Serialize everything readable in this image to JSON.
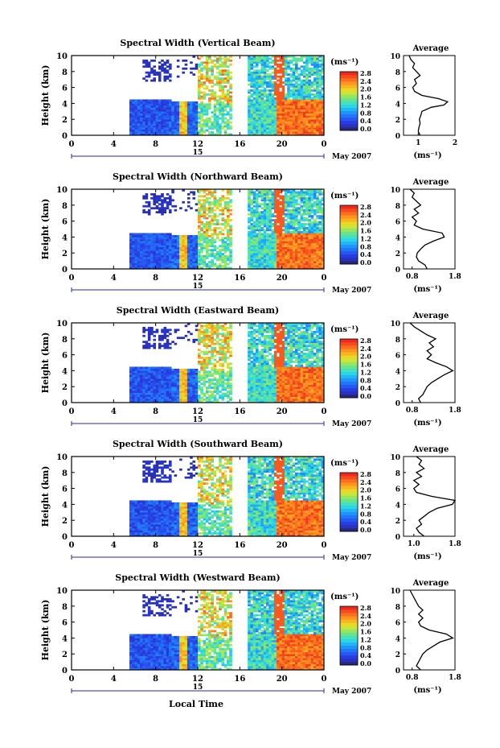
{
  "chart_data": [
    {
      "type": "heatmap",
      "title": "Spectral Width (Vertical Beam)",
      "ylabel": "Height (km)",
      "ylim": [
        0,
        10
      ],
      "y_ticks": [
        "0",
        "2",
        "4",
        "6",
        "8",
        "10"
      ],
      "x_ticks": [
        "0",
        "4",
        "8",
        "12",
        "16",
        "20",
        "0"
      ],
      "xlim": [
        0,
        24
      ],
      "date_label": "15",
      "month_label": "May 2007",
      "colorbar": {
        "unit": "(ms⁻¹)",
        "ticks": [
          "0.0",
          "0.4",
          "0.8",
          "1.2",
          "1.6",
          "2.0",
          "2.4",
          "2.8"
        ]
      },
      "average": {
        "title": "Average",
        "xlabel": "(ms⁻¹)",
        "x_ticks": [
          "1",
          "2"
        ],
        "xlim": [
          0.6,
          2.0
        ],
        "profile_height": [
          0,
          0.5,
          1,
          1.5,
          2,
          2.5,
          3,
          3.5,
          3.8,
          4.2,
          4.6,
          5,
          5.5,
          6,
          6.5,
          7,
          7.5,
          8,
          8.5,
          9,
          9.5,
          10
        ],
        "profile_value": [
          1.05,
          1.0,
          1.02,
          1.05,
          1.03,
          1.07,
          1.1,
          1.35,
          1.7,
          1.8,
          1.55,
          1.1,
          0.9,
          0.85,
          0.95,
          0.9,
          1.05,
          0.95,
          0.85,
          0.9,
          0.8,
          0.75
        ]
      }
    },
    {
      "type": "heatmap",
      "title": "Spectral Width (Northward Beam)",
      "ylabel": "Height (km)",
      "ylim": [
        0,
        10
      ],
      "y_ticks": [
        "0",
        "2",
        "4",
        "6",
        "8",
        "10"
      ],
      "x_ticks": [
        "0",
        "4",
        "8",
        "12",
        "16",
        "20",
        "0"
      ],
      "xlim": [
        0,
        24
      ],
      "date_label": "15",
      "month_label": "May 2007",
      "colorbar": {
        "unit": "(ms⁻¹)",
        "ticks": [
          "0.0",
          "0.4",
          "0.8",
          "1.2",
          "1.6",
          "2.0",
          "2.4",
          "2.8"
        ]
      },
      "average": {
        "title": "Average",
        "xlabel": "(ms⁻¹)",
        "x_ticks": [
          "0.8",
          "1.8"
        ],
        "xlim": [
          0.6,
          1.8
        ],
        "profile_height": [
          0,
          0.5,
          1,
          1.5,
          2,
          2.5,
          3,
          3.5,
          4,
          4.5,
          5,
          5.5,
          6,
          6.5,
          7,
          7.5,
          8,
          8.5,
          9,
          9.5,
          10
        ],
        "profile_value": [
          1.15,
          1.1,
          0.95,
          0.9,
          0.92,
          1.0,
          1.1,
          1.3,
          1.55,
          1.5,
          1.05,
          0.85,
          0.9,
          0.8,
          0.95,
          0.85,
          1.0,
          0.9,
          0.8,
          0.85,
          0.75
        ]
      }
    },
    {
      "type": "heatmap",
      "title": "Spectral Width (Eastward Beam)",
      "ylabel": "Height (km)",
      "ylim": [
        0,
        10
      ],
      "y_ticks": [
        "0",
        "2",
        "4",
        "6",
        "8",
        "10"
      ],
      "x_ticks": [
        "0",
        "4",
        "8",
        "12",
        "16",
        "20",
        "0"
      ],
      "xlim": [
        0,
        24
      ],
      "date_label": "15",
      "month_label": "May 2007",
      "colorbar": {
        "unit": "(ms⁻¹)",
        "ticks": [
          "0.0",
          "0.4",
          "0.8",
          "1.2",
          "1.6",
          "2.0",
          "2.4",
          "2.8"
        ]
      },
      "average": {
        "title": "Average",
        "xlabel": "(ms⁻¹)",
        "x_ticks": [
          "0.8",
          "1.8"
        ],
        "xlim": [
          0.6,
          1.8
        ],
        "profile_height": [
          0,
          0.5,
          1,
          1.5,
          2,
          2.5,
          3,
          3.5,
          4,
          4.5,
          5,
          5.5,
          6,
          6.5,
          7,
          7.5,
          8,
          8.5,
          9,
          9.5,
          10
        ],
        "profile_value": [
          1.0,
          0.95,
          1.05,
          1.1,
          1.15,
          1.25,
          1.4,
          1.55,
          1.75,
          1.6,
          1.35,
          1.15,
          1.25,
          1.15,
          1.3,
          1.2,
          1.35,
          1.15,
          1.0,
          0.85,
          0.75
        ]
      }
    },
    {
      "type": "heatmap",
      "title": "Spectral Width (Southward Beam)",
      "ylabel": "Height (km)",
      "ylim": [
        0,
        10
      ],
      "y_ticks": [
        "0",
        "2",
        "4",
        "6",
        "8",
        "10"
      ],
      "x_ticks": [
        "0",
        "4",
        "8",
        "12",
        "16",
        "20",
        "0"
      ],
      "xlim": [
        0,
        24
      ],
      "date_label": "15",
      "month_label": "May 2007",
      "colorbar": {
        "unit": "(ms⁻¹)",
        "ticks": [
          "0.0",
          "0.4",
          "0.8",
          "1.2",
          "1.6",
          "2.0",
          "2.4",
          "2.8"
        ]
      },
      "average": {
        "title": "Average",
        "xlabel": "(ms⁻¹)",
        "x_ticks": [
          "1.0",
          "1.8"
        ],
        "xlim": [
          0.8,
          1.8
        ],
        "profile_height": [
          0,
          0.5,
          1,
          1.5,
          2,
          2.5,
          3,
          3.5,
          4,
          4.5,
          5,
          5.5,
          6,
          6.5,
          7,
          7.5,
          8,
          8.5,
          9,
          9.5,
          10
        ],
        "profile_value": [
          1.2,
          1.1,
          1.05,
          1.15,
          1.1,
          1.2,
          1.3,
          1.45,
          1.75,
          1.8,
          1.35,
          1.05,
          1.0,
          1.1,
          1.0,
          1.15,
          1.05,
          1.2,
          1.1,
          1.15,
          1.05
        ]
      }
    },
    {
      "type": "heatmap",
      "title": "Spectral Width (Westward Beam)",
      "ylabel": "Height (km)",
      "ylim": [
        0,
        10
      ],
      "y_ticks": [
        "0",
        "2",
        "4",
        "6",
        "8",
        "10"
      ],
      "x_ticks": [
        "0",
        "4",
        "8",
        "12",
        "16",
        "20",
        "0"
      ],
      "xlim": [
        0,
        24
      ],
      "date_label": "15",
      "month_label": "May 2007",
      "xlabel": "Local Time",
      "colorbar": {
        "unit": "(ms⁻¹)",
        "ticks": [
          "0.0",
          "0.4",
          "0.8",
          "1.2",
          "1.6",
          "2.0",
          "2.4",
          "2.8"
        ]
      },
      "average": {
        "title": "Average",
        "xlabel": "(ms⁻¹)",
        "x_ticks": [
          "0.8",
          "1.8"
        ],
        "xlim": [
          0.6,
          1.8
        ],
        "profile_height": [
          0,
          0.5,
          1,
          1.5,
          2,
          2.5,
          3,
          3.5,
          4,
          4.5,
          5,
          5.5,
          6,
          6.5,
          7,
          7.5,
          8,
          8.5,
          9,
          9.5,
          10
        ],
        "profile_value": [
          1.0,
          0.9,
          0.95,
          1.0,
          1.05,
          1.15,
          1.3,
          1.45,
          1.75,
          1.6,
          1.2,
          1.0,
          0.95,
          1.05,
          0.95,
          1.05,
          0.95,
          0.9,
          0.85,
          0.8,
          0.75
        ]
      }
    }
  ]
}
